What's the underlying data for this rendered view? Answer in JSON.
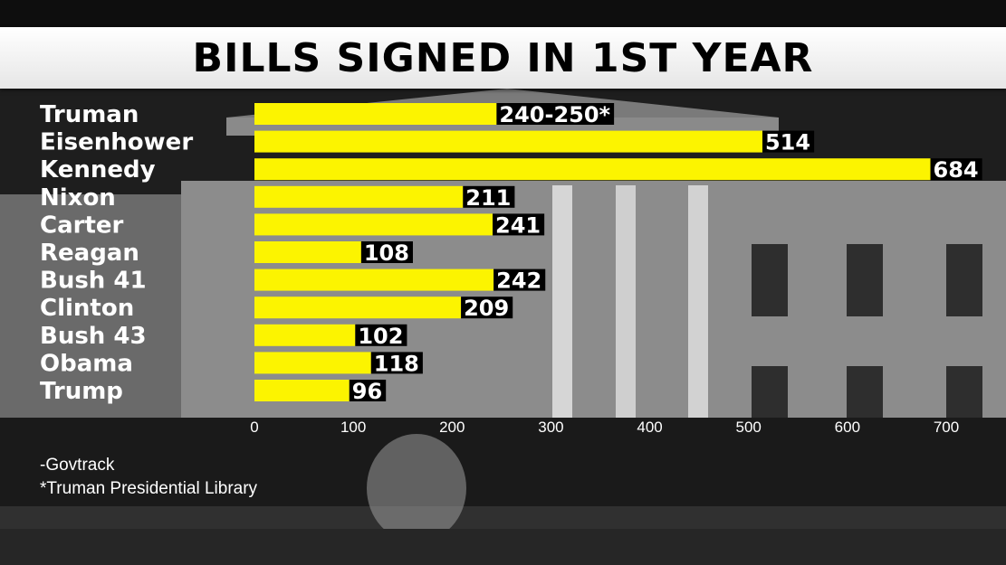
{
  "chart_data": {
    "type": "bar",
    "orientation": "horizontal",
    "title": "BILLS SIGNED IN 1ST YEAR",
    "categories": [
      "Truman",
      "Eisenhower",
      "Kennedy",
      "Nixon",
      "Carter",
      "Reagan",
      "Bush 41",
      "Clinton",
      "Bush 43",
      "Obama",
      "Trump"
    ],
    "values": [
      245,
      514,
      684,
      211,
      241,
      108,
      242,
      209,
      102,
      118,
      96
    ],
    "data_labels": [
      "240-250*",
      "514",
      "684",
      "211",
      "241",
      "108",
      "242",
      "209",
      "102",
      "118",
      "96"
    ],
    "xlim": [
      0,
      700
    ],
    "x_ticks": [
      0,
      100,
      200,
      300,
      400,
      500,
      600,
      700
    ],
    "grid": false,
    "bar_color": "#fcf400",
    "label_background": "#000000"
  },
  "notes": [
    "-Govtrack",
    "*Truman Presidential Library"
  ]
}
